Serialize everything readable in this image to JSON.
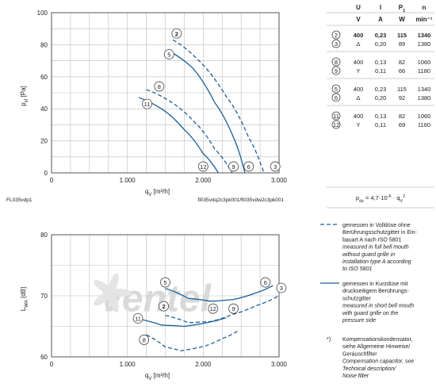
{
  "chart_data": [
    {
      "id": "top",
      "type": "line",
      "ylabel": "p",
      "ylabel_sub": "sf",
      "ylabel_unit": " [Pa]",
      "xlabel": "q",
      "xlabel_sub": "V",
      "xlabel_unit": " [m³/h]",
      "xlim": [
        0,
        3000
      ],
      "ylim": [
        0,
        100
      ],
      "xticks": [
        0,
        1000,
        2000,
        3000
      ],
      "xtick_labels": [
        "0",
        "1.000",
        "2.000",
        "3.000"
      ],
      "yticks": [
        0,
        20,
        40,
        60,
        80,
        100
      ],
      "ytick_labels": [
        "0",
        "20",
        "40",
        "60",
        "80",
        "100"
      ],
      "grid": true,
      "footer_left": "FL035vdp1",
      "footer_right": "fl035vdq2c3pk001/fl035vdw2c3pk001",
      "series": [
        {
          "name": "2",
          "dashed": true,
          "points": [
            [
              1600,
              83
            ],
            [
              1900,
              72
            ],
            [
              2300,
              48
            ],
            [
              2600,
              22
            ],
            [
              2800,
              0
            ]
          ]
        },
        {
          "name": "5",
          "dashed": false,
          "points": [
            [
              1550,
              76
            ],
            [
              1850,
              66
            ],
            [
              2150,
              44
            ],
            [
              2400,
              22
            ],
            [
              2550,
              0
            ]
          ]
        },
        {
          "name": "8",
          "dashed": true,
          "points": [
            [
              1250,
              52
            ],
            [
              1550,
              45
            ],
            [
              1900,
              31
            ],
            [
              2150,
              15
            ],
            [
              2380,
              0
            ]
          ]
        },
        {
          "name": "11",
          "dashed": false,
          "points": [
            [
              1150,
              47
            ],
            [
              1450,
              40
            ],
            [
              1750,
              27
            ],
            [
              2000,
              12
            ],
            [
              2200,
              0
            ]
          ]
        }
      ],
      "labels": [
        {
          "text": "2",
          "x": 1650,
          "y": 87,
          "bold": true
        },
        {
          "text": "5",
          "x": 1550,
          "y": 74
        },
        {
          "text": "8",
          "x": 1420,
          "y": 54
        },
        {
          "text": "11",
          "x": 1260,
          "y": 43
        },
        {
          "text": "12",
          "x": 2000,
          "y": 4
        },
        {
          "text": "9",
          "x": 2400,
          "y": 4
        },
        {
          "text": "6",
          "x": 2600,
          "y": 4
        },
        {
          "text": "3",
          "x": 2950,
          "y": 4
        }
      ]
    },
    {
      "id": "bottom",
      "type": "line",
      "ylabel": "L",
      "ylabel_sub": "WA",
      "ylabel_unit": " [dB]",
      "xlabel": "q",
      "xlabel_sub": "V",
      "xlabel_unit": " [m³/h]",
      "xlim": [
        0,
        3000
      ],
      "ylim": [
        60,
        80
      ],
      "xticks": [
        0,
        1000,
        2000,
        3000
      ],
      "xtick_labels": [
        "0",
        "1.000",
        "2.000",
        "3.000"
      ],
      "yticks": [
        60,
        70,
        80
      ],
      "ytick_labels": [
        "60",
        "70",
        "80"
      ],
      "grid": true,
      "series": [
        {
          "name": "5",
          "dashed": false,
          "points": [
            [
              1500,
              71.2
            ],
            [
              1800,
              69.6
            ],
            [
              2100,
              69.1
            ],
            [
              2400,
              69.4
            ],
            [
              2700,
              70.5
            ],
            [
              2920,
              71.7
            ]
          ]
        },
        {
          "name": "2",
          "dashed": true,
          "points": [
            [
              1500,
              66.8
            ],
            [
              1800,
              65.6
            ],
            [
              2100,
              65.8
            ],
            [
              2400,
              67.0
            ],
            [
              2700,
              68.4
            ],
            [
              2980,
              69.9
            ]
          ]
        },
        {
          "name": "11",
          "dashed": false,
          "points": [
            [
              1150,
              66.2
            ],
            [
              1450,
              65.2
            ],
            [
              1750,
              65.0
            ],
            [
              2050,
              65.6
            ],
            [
              2300,
              66.4
            ]
          ]
        },
        {
          "name": "8",
          "dashed": true,
          "points": [
            [
              1250,
              63.6
            ],
            [
              1500,
              61.6
            ],
            [
              1700,
              61.0
            ],
            [
              2000,
              61.7
            ],
            [
              2250,
              63.0
            ],
            [
              2450,
              64.2
            ]
          ]
        }
      ],
      "labels": [
        {
          "text": "5",
          "x": 1500,
          "y": 72.2
        },
        {
          "text": "6",
          "x": 2820,
          "y": 72.2
        },
        {
          "text": "3",
          "x": 3030,
          "y": 71.3
        },
        {
          "text": "2",
          "x": 1480,
          "y": 68.3,
          "bold": true
        },
        {
          "text": "12",
          "x": 2130,
          "y": 67.9
        },
        {
          "text": "9",
          "x": 2400,
          "y": 67.9
        },
        {
          "text": "11",
          "x": 1140,
          "y": 66.3
        },
        {
          "text": "8",
          "x": 1220,
          "y": 62.8
        }
      ],
      "watermark": "ventel"
    }
  ],
  "table": {
    "headers": [
      "U",
      "I",
      "P",
      "n"
    ],
    "header_sub": [
      "",
      "",
      "1",
      ""
    ],
    "units": [
      "V",
      "A",
      "W",
      "min⁻¹"
    ],
    "groups": [
      {
        "rows": [
          {
            "id": "2",
            "U": "400",
            "I": "0,23",
            "P": "115",
            "n": "1340",
            "bold": true
          },
          {
            "id": "3",
            "U": "Δ",
            "I": "0,20",
            "P": "89",
            "n": "1380"
          }
        ]
      },
      {
        "rows": [
          {
            "id": "8",
            "U": "400",
            "I": "0,13",
            "P": "82",
            "n": "1060"
          },
          {
            "id": "9",
            "U": "Y",
            "I": "0,11",
            "P": "66",
            "n": "1180"
          }
        ]
      },
      {
        "rows": [
          {
            "id": "5",
            "U": "400",
            "I": "0,23",
            "P": "115",
            "n": "1340"
          },
          {
            "id": "6",
            "U": "Δ",
            "I": "0,20",
            "P": "92",
            "n": "1380"
          }
        ]
      },
      {
        "rows": [
          {
            "id": "11",
            "U": "400",
            "I": "0,13",
            "P": "82",
            "n": "1060"
          },
          {
            "id": "12",
            "U": "Y",
            "I": "0,11",
            "P": "69",
            "n": "1160"
          }
        ]
      }
    ],
    "formula": "pₑₓ = 4,7·10⁻⁶ · qᵥ²",
    "formula_parts": {
      "lhs": "p",
      "lhs_sub": "dz",
      "rhs": " = 4,7·10",
      "exp": "-6",
      "rhs2": " · q",
      "rhs_sub": "V",
      "rhs_exp": "2"
    }
  },
  "legend": {
    "dashed": {
      "lines": [
        "gemessen in Volldüse ohne",
        "Berührungsschutzgitter in Ein-",
        "bauart A nach ISO 5801"
      ],
      "italic": [
        "measured in full bell mouth",
        "without guard grille in",
        "installation type A according",
        "to ISO 5801"
      ]
    },
    "solid": {
      "lines": [
        "gemessen in Kurzdüse mit",
        "druckseitigem Berührungs-",
        "schutzgitter"
      ],
      "italic": [
        "measured in short bell mouth",
        "with guard grille on the",
        "pressure side"
      ]
    },
    "note": {
      "mark": "*)",
      "lines": [
        "Kompensationskondensator,",
        "siehe Allgemeine Hinweise/",
        "Geräuschfilter"
      ],
      "italic": [
        "Compensation capacitor, see",
        "Technical description/",
        "Noise filter"
      ]
    }
  },
  "colors": {
    "curve": "#1d5f99",
    "grid": "#bdbdbd",
    "watermark": "#d9d9d9"
  }
}
